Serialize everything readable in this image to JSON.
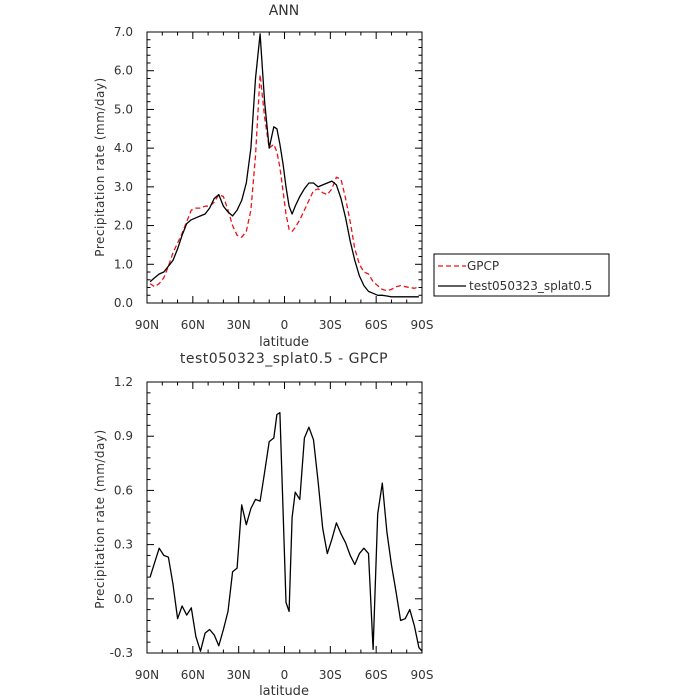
{
  "chart_data": [
    {
      "type": "line",
      "title": "ANN",
      "xlabel": "latitude",
      "ylabel": "Precipitation rate (mm/day)",
      "xlim": [
        90,
        -90
      ],
      "ylim": [
        0,
        7
      ],
      "xticks": [
        90,
        60,
        30,
        0,
        -30,
        -60,
        -90
      ],
      "xtick_labels": [
        "90N",
        "60N",
        "30N",
        "0",
        "30S",
        "60S",
        "90S"
      ],
      "yticks": [
        0,
        1,
        2,
        3,
        4,
        5,
        6,
        7
      ],
      "ytick_labels": [
        "0.0",
        "1.0",
        "2.0",
        "3.0",
        "4.0",
        "5.0",
        "6.0",
        "7.0"
      ],
      "legend_position": "right",
      "series": [
        {
          "name": "GPCP",
          "color": "#e8141b",
          "dash": "dashed",
          "x": [
            88,
            85,
            82,
            79,
            76,
            73,
            70,
            67,
            64,
            61,
            58,
            55,
            52,
            49,
            46,
            43,
            40,
            37,
            34,
            31,
            28,
            25,
            22,
            19,
            16,
            13,
            10,
            7,
            5,
            3,
            1,
            -1,
            -3,
            -5,
            -7,
            -10,
            -13,
            -16,
            -19,
            -22,
            -25,
            -28,
            -31,
            -34,
            -37,
            -40,
            -43,
            -46,
            -49,
            -52,
            -55,
            -58,
            -61,
            -64,
            -67,
            -70,
            -73,
            -76,
            -79,
            -82,
            -85,
            -88
          ],
          "y": [
            0.5,
            0.42,
            0.5,
            0.65,
            0.95,
            1.3,
            1.55,
            1.8,
            2.1,
            2.4,
            2.45,
            2.45,
            2.5,
            2.5,
            2.6,
            2.8,
            2.75,
            2.4,
            2.0,
            1.75,
            1.7,
            1.85,
            2.4,
            3.8,
            5.9,
            4.8,
            4.0,
            4.1,
            3.9,
            3.5,
            2.9,
            2.3,
            1.9,
            1.85,
            1.95,
            2.15,
            2.4,
            2.65,
            2.9,
            2.95,
            2.85,
            2.8,
            2.95,
            3.25,
            3.2,
            2.7,
            2.1,
            1.4,
            1.0,
            0.8,
            0.75,
            0.55,
            0.45,
            0.35,
            0.32,
            0.35,
            0.42,
            0.45,
            0.42,
            0.4,
            0.38,
            0.42
          ]
        },
        {
          "name": "test050323_splat0.5",
          "color": "#000000",
          "dash": "solid",
          "x": [
            88,
            85,
            82,
            79,
            76,
            73,
            70,
            67,
            64,
            61,
            58,
            55,
            52,
            49,
            46,
            43,
            40,
            37,
            34,
            31,
            28,
            25,
            22,
            19,
            16,
            13,
            10,
            7,
            5,
            3,
            1,
            -1,
            -3,
            -5,
            -7,
            -10,
            -13,
            -16,
            -19,
            -22,
            -25,
            -28,
            -31,
            -34,
            -37,
            -40,
            -43,
            -46,
            -49,
            -52,
            -55,
            -58,
            -61,
            -64,
            -67,
            -70,
            -73,
            -76,
            -79,
            -82,
            -85,
            -88
          ],
          "y": [
            0.55,
            0.65,
            0.75,
            0.8,
            0.95,
            1.1,
            1.4,
            1.75,
            2.05,
            2.15,
            2.2,
            2.25,
            2.3,
            2.45,
            2.7,
            2.8,
            2.5,
            2.35,
            2.25,
            2.4,
            2.65,
            3.1,
            4.0,
            5.8,
            6.95,
            5.2,
            4.0,
            4.55,
            4.5,
            4.1,
            3.6,
            3.0,
            2.5,
            2.3,
            2.5,
            2.75,
            2.95,
            3.1,
            3.1,
            3.0,
            3.05,
            3.1,
            3.15,
            3.05,
            2.7,
            2.2,
            1.6,
            1.1,
            0.7,
            0.45,
            0.3,
            0.25,
            0.2,
            0.2,
            0.18,
            0.16,
            0.16,
            0.16,
            0.16,
            0.16,
            0.16,
            0.16
          ]
        }
      ]
    },
    {
      "type": "line",
      "title": "test050323_splat0.5 - GPCP",
      "xlabel": "latitude",
      "ylabel": "Precipitation rate (mm/day)",
      "xlim": [
        90,
        -90
      ],
      "ylim": [
        -0.3,
        1.2
      ],
      "xticks": [
        90,
        60,
        30,
        0,
        -30,
        -60,
        -90
      ],
      "xtick_labels": [
        "90N",
        "60N",
        "30N",
        "0",
        "30S",
        "60S",
        "90S"
      ],
      "yticks": [
        -0.3,
        0,
        0.3,
        0.6,
        0.9,
        1.2
      ],
      "ytick_labels": [
        "-0.3",
        "0.0",
        "0.3",
        "0.6",
        "0.9",
        "1.2"
      ],
      "series": [
        {
          "color": "#000000",
          "dash": "solid",
          "x": [
            88,
            85,
            82,
            79,
            76,
            73,
            70,
            67,
            64,
            61,
            58,
            55,
            52,
            49,
            46,
            43,
            40,
            37,
            34,
            31,
            28,
            25,
            22,
            19,
            16,
            13,
            10,
            7,
            5,
            3,
            1,
            -1,
            -3,
            -5,
            -7,
            -10,
            -13,
            -16,
            -19,
            -22,
            -25,
            -28,
            -31,
            -34,
            -37,
            -40,
            -43,
            -46,
            -49,
            -52,
            -55,
            -58,
            -61,
            -64,
            -67,
            -70,
            -73,
            -76,
            -79,
            -82,
            -85,
            -88,
            -90
          ],
          "y": [
            0.12,
            0.2,
            0.28,
            0.24,
            0.23,
            0.08,
            -0.11,
            -0.04,
            -0.09,
            -0.05,
            -0.21,
            -0.29,
            -0.19,
            -0.17,
            -0.2,
            -0.26,
            -0.17,
            -0.07,
            0.15,
            0.17,
            0.52,
            0.41,
            0.5,
            0.55,
            0.54,
            0.7,
            0.87,
            0.89,
            1.02,
            1.03,
            0.5,
            -0.02,
            -0.07,
            0.45,
            0.59,
            0.55,
            0.89,
            0.95,
            0.88,
            0.65,
            0.39,
            0.25,
            0.33,
            0.42,
            0.36,
            0.31,
            0.24,
            0.19,
            0.25,
            0.28,
            0.25,
            -0.28,
            0.47,
            0.64,
            0.37,
            0.19,
            0.04,
            -0.12,
            -0.11,
            -0.06,
            -0.15,
            -0.27,
            -0.29
          ]
        }
      ]
    }
  ]
}
